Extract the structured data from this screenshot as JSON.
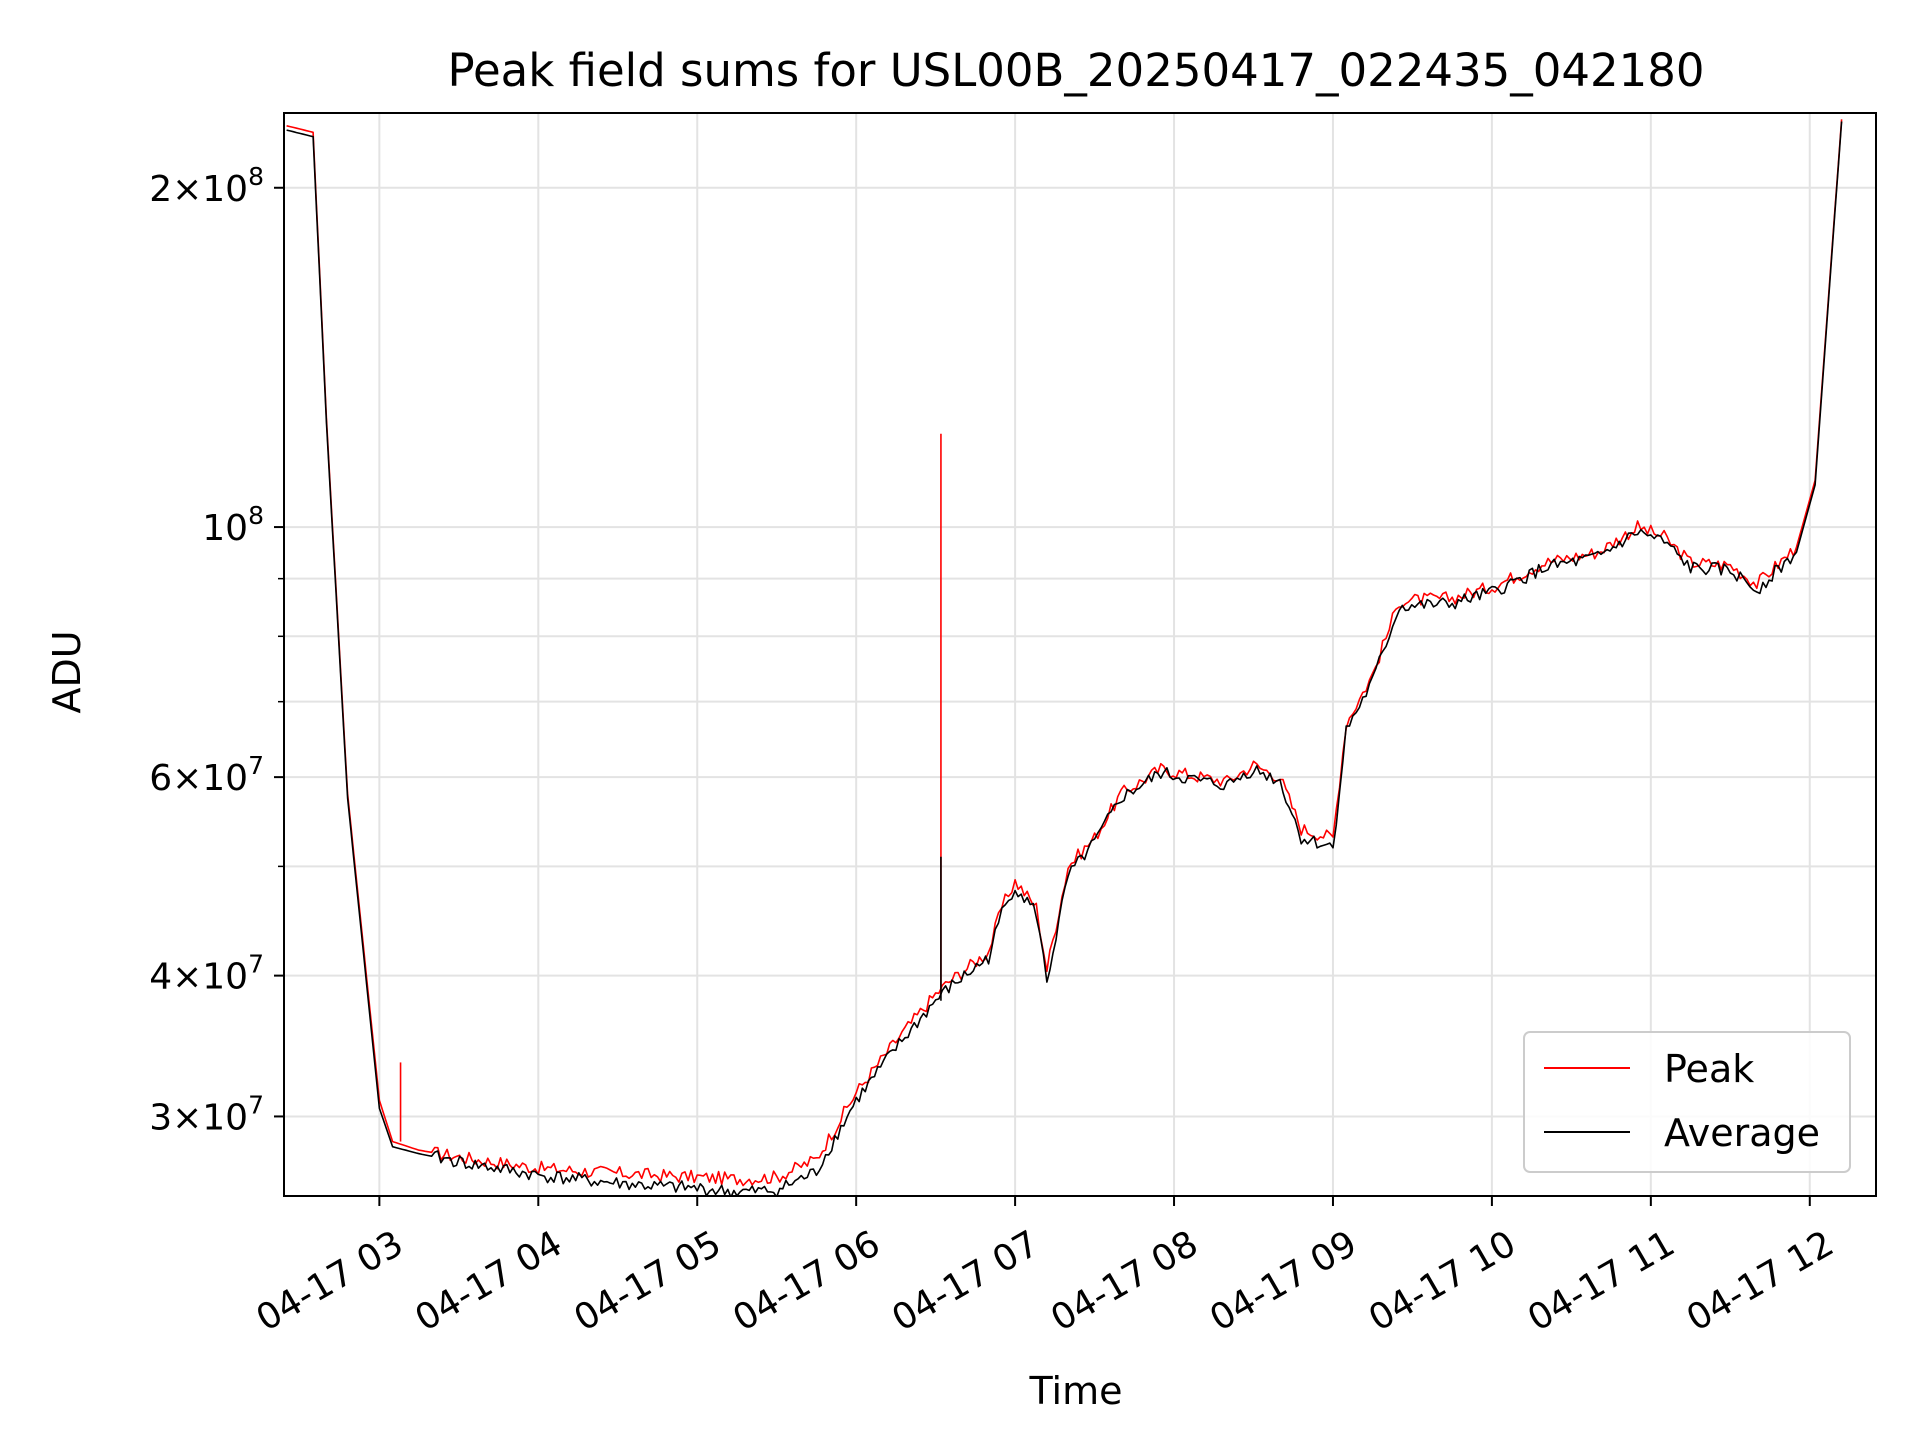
{
  "chart_data": {
    "type": "line",
    "title": "Peak field sums for USL00B_20250417_022435_042180",
    "xlabel": "Time",
    "ylabel": "ADU",
    "yscale": "log",
    "xlim": [
      "04-17 02:24",
      "04-17 12:25"
    ],
    "ylim": [
      25500000,
      233000000
    ],
    "grid": true,
    "legend_position": "lower-right",
    "x_ticks": [
      "04-17 03",
      "04-17 04",
      "04-17 05",
      "04-17 06",
      "04-17 07",
      "04-17 08",
      "04-17 09",
      "04-17 10",
      "04-17 11",
      "04-17 12"
    ],
    "y_ticks": [
      {
        "value": 30000000,
        "label_base": "3×10",
        "label_exp": "7"
      },
      {
        "value": 40000000,
        "label_base": "4×10",
        "label_exp": "7"
      },
      {
        "value": 60000000,
        "label_base": "6×10",
        "label_exp": "7"
      },
      {
        "value": 100000000,
        "label_base": "10",
        "label_exp": "8"
      },
      {
        "value": 200000000,
        "label_base": "2×10",
        "label_exp": "8"
      }
    ],
    "y_minor_ticks": [
      50000000,
      70000000,
      80000000,
      90000000
    ],
    "series": [
      {
        "name": "Peak",
        "color": "#ff0000",
        "points": [
          [
            "04-17 02:25",
            227000000.0
          ],
          [
            "04-17 02:35",
            224000000.0
          ],
          [
            "04-17 02:40",
            125000000.0
          ],
          [
            "04-17 02:48",
            58000000.0
          ],
          [
            "04-17 03:00",
            31000000.0
          ],
          [
            "04-17 03:05",
            28500000.0
          ],
          [
            "04-17 03:15",
            28000000.0
          ],
          [
            "04-17 03:35",
            27500000.0
          ],
          [
            "04-17 04:00",
            27000000.0
          ],
          [
            "04-17 04:20",
            26800000.0
          ],
          [
            "04-17 04:45",
            26600000.0
          ],
          [
            "04-17 05:00",
            26500000.0
          ],
          [
            "04-17 05:15",
            26400000.0
          ],
          [
            "04-17 05:30",
            26500000.0
          ],
          [
            "04-17 05:45",
            27500000.0
          ],
          [
            "04-17 06:00",
            31500000.0
          ],
          [
            "04-17 06:15",
            35000000.0
          ],
          [
            "04-17 06:30",
            38500000.0
          ],
          [
            "04-17 06:35",
            39500000.0
          ],
          [
            "04-17 06:50",
            42000000.0
          ],
          [
            "04-17 06:55",
            46000000.0
          ],
          [
            "04-17 07:00",
            48500000.0
          ],
          [
            "04-17 07:08",
            46000000.0
          ],
          [
            "04-17 07:12",
            40500000.0
          ],
          [
            "04-17 07:20",
            50000000.0
          ],
          [
            "04-17 07:30",
            53000000.0
          ],
          [
            "04-17 07:40",
            58000000.0
          ],
          [
            "04-17 07:55",
            61000000.0
          ],
          [
            "04-17 08:10",
            60000000.0
          ],
          [
            "04-17 08:20",
            59500000.0
          ],
          [
            "04-17 08:30",
            61500000.0
          ],
          [
            "04-17 08:40",
            60000000.0
          ],
          [
            "04-17 08:48",
            54000000.0
          ],
          [
            "04-17 09:00",
            53000000.0
          ],
          [
            "04-17 09:05",
            67000000.0
          ],
          [
            "04-17 09:15",
            74000000.0
          ],
          [
            "04-17 09:25",
            86000000.0
          ],
          [
            "04-17 09:45",
            86500000.0
          ],
          [
            "04-17 10:00",
            88500000.0
          ],
          [
            "04-17 10:20",
            93000000.0
          ],
          [
            "04-17 10:40",
            95000000.0
          ],
          [
            "04-17 10:55",
            100000000.0
          ],
          [
            "04-17 11:05",
            98000000.0
          ],
          [
            "04-17 11:15",
            93000000.0
          ],
          [
            "04-17 11:30",
            92500000.0
          ],
          [
            "04-17 11:40",
            89000000.0
          ],
          [
            "04-17 11:55",
            96000000.0
          ],
          [
            "04-17 12:02",
            110000000.0
          ],
          [
            "04-17 12:12",
            230000000.0
          ]
        ],
        "spikes": [
          {
            "x": "04-17 06:32",
            "y": 121000000.0
          },
          {
            "x": "04-17 03:08",
            "y": 33500000.0
          }
        ]
      },
      {
        "name": "Average",
        "color": "#000000",
        "points": [
          [
            "04-17 02:25",
            225000000.0
          ],
          [
            "04-17 02:35",
            222000000.0
          ],
          [
            "04-17 02:40",
            124000000.0
          ],
          [
            "04-17 02:48",
            57500000.0
          ],
          [
            "04-17 03:00",
            30500000.0
          ],
          [
            "04-17 03:05",
            28200000.0
          ],
          [
            "04-17 03:15",
            27800000.0
          ],
          [
            "04-17 03:35",
            27200000.0
          ],
          [
            "04-17 04:00",
            26600000.0
          ],
          [
            "04-17 04:20",
            26300000.0
          ],
          [
            "04-17 04:45",
            26000000.0
          ],
          [
            "04-17 05:00",
            25900000.0
          ],
          [
            "04-17 05:15",
            25700000.0
          ],
          [
            "04-17 05:30",
            25800000.0
          ],
          [
            "04-17 05:45",
            26800000.0
          ],
          [
            "04-17 06:00",
            31000000.0
          ],
          [
            "04-17 06:15",
            34500000.0
          ],
          [
            "04-17 06:30",
            38000000.0
          ],
          [
            "04-17 06:35",
            39000000.0
          ],
          [
            "04-17 06:50",
            41500000.0
          ],
          [
            "04-17 06:55",
            45500000.0
          ],
          [
            "04-17 07:00",
            48000000.0
          ],
          [
            "04-17 07:08",
            45500000.0
          ],
          [
            "04-17 07:12",
            39500000.0
          ],
          [
            "04-17 07:20",
            49000000.0
          ],
          [
            "04-17 07:30",
            52500000.0
          ],
          [
            "04-17 07:40",
            57500000.0
          ],
          [
            "04-17 07:55",
            60500000.0
          ],
          [
            "04-17 08:10",
            59500000.0
          ],
          [
            "04-17 08:20",
            59000000.0
          ],
          [
            "04-17 08:30",
            61000000.0
          ],
          [
            "04-17 08:40",
            59500000.0
          ],
          [
            "04-17 08:48",
            53000000.0
          ],
          [
            "04-17 09:00",
            52000000.0
          ],
          [
            "04-17 09:05",
            66000000.0
          ],
          [
            "04-17 09:15",
            73000000.0
          ],
          [
            "04-17 09:25",
            85000000.0
          ],
          [
            "04-17 09:45",
            85500000.0
          ],
          [
            "04-17 10:00",
            87500000.0
          ],
          [
            "04-17 10:20",
            92000000.0
          ],
          [
            "04-17 10:40",
            94000000.0
          ],
          [
            "04-17 10:55",
            99000000.0
          ],
          [
            "04-17 11:05",
            97000000.0
          ],
          [
            "04-17 11:15",
            92000000.0
          ],
          [
            "04-17 11:30",
            91500000.0
          ],
          [
            "04-17 11:40",
            88000000.0
          ],
          [
            "04-17 11:55",
            95000000.0
          ],
          [
            "04-17 12:02",
            109000000.0
          ],
          [
            "04-17 12:12",
            229000000.0
          ]
        ],
        "spikes": [
          {
            "x": "04-17 06:32",
            "y": 51000000.0
          }
        ]
      }
    ]
  }
}
